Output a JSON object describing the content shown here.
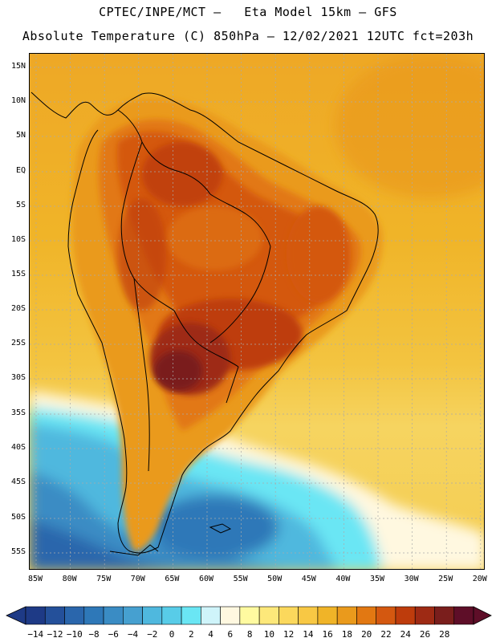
{
  "header": {
    "line1": "CPTEC/INPE/MCT –   Eta Model 15km – GFS",
    "line2": "Absolute Temperature (C) 850hPa – 12/02/2021 12UTC fct=203h"
  },
  "map": {
    "lat_labels": [
      "15N",
      "10N",
      "5N",
      "EQ",
      "5S",
      "10S",
      "15S",
      "20S",
      "25S",
      "30S",
      "35S",
      "40S",
      "45S",
      "50S",
      "55S"
    ],
    "lon_labels": [
      "85W",
      "80W",
      "75W",
      "70W",
      "65W",
      "60W",
      "55W",
      "50W",
      "45W",
      "40W",
      "35W",
      "30W",
      "25W",
      "20W"
    ],
    "region": "South America",
    "colors": {
      "ocean_warm": "#f0b830",
      "ocean_mid": "#f5d060",
      "land_hot": "#d96010",
      "land_very_hot": "#b03818",
      "land_extreme": "#802818",
      "cold": "#30a8d0",
      "very_cold": "#2a6aa8"
    }
  },
  "colorbar": {
    "tick_labels": [
      "-14",
      "-12",
      "-10",
      "-8",
      "-6",
      "-4",
      "-2",
      "0",
      "2",
      "4",
      "6",
      "8",
      "10",
      "12",
      "14",
      "16",
      "18",
      "20",
      "22",
      "24",
      "26",
      "28"
    ],
    "colors": [
      "#1e3a86",
      "#24509a",
      "#2a66ac",
      "#2e78b8",
      "#3a8cc4",
      "#46a0d0",
      "#4fb8de",
      "#58cce8",
      "#6ae6f4",
      "#cff4fa",
      "#fff8e0",
      "#fffaa0",
      "#fde87a",
      "#fbd85c",
      "#f8c844",
      "#f0b428",
      "#ea9a1c",
      "#e27812",
      "#d45810",
      "#be3c0c",
      "#9e2a14",
      "#7a1e1c",
      "#5e0e28"
    ]
  }
}
